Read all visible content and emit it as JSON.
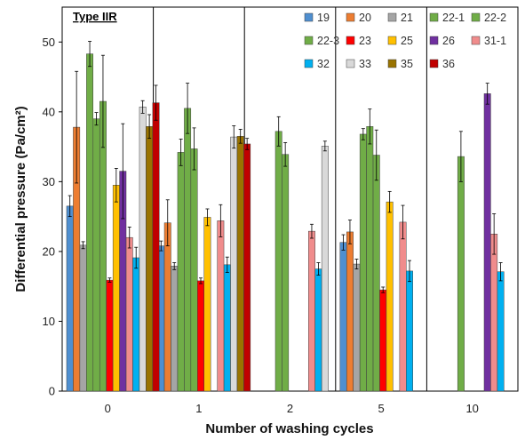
{
  "chart_data": {
    "type": "bar",
    "panel_label": "Type IIR",
    "xlabel": "Number of washing cycles",
    "ylabel": "Differential pressure (Pa/cm²)",
    "ylim": [
      0,
      55
    ],
    "yticks": [
      0,
      10,
      20,
      30,
      40,
      50
    ],
    "categories": [
      "0",
      "1",
      "2",
      "5",
      "10"
    ],
    "grid": false,
    "legend_position": "top-right",
    "series": [
      {
        "name": "19",
        "color": "#4f8fd0",
        "values": [
          26.5,
          20.8,
          null,
          21.3,
          null
        ],
        "errors": [
          1.5,
          0.7,
          null,
          1.1,
          null
        ]
      },
      {
        "name": "20",
        "color": "#ed7d31",
        "values": [
          37.8,
          24.1,
          null,
          22.8,
          null
        ],
        "errors": [
          8.0,
          3.3,
          null,
          1.7,
          null
        ]
      },
      {
        "name": "21",
        "color": "#a5a5a5",
        "values": [
          20.9,
          17.9,
          null,
          18.2,
          null
        ],
        "errors": [
          0.5,
          0.5,
          null,
          0.7,
          null
        ]
      },
      {
        "name": "22-1",
        "color": "#70ad47",
        "values": [
          48.3,
          34.2,
          null,
          36.8,
          null
        ],
        "errors": [
          1.8,
          1.9,
          null,
          0.8,
          null
        ]
      },
      {
        "name": "22-2",
        "color": "#70ad47",
        "values": [
          39.0,
          40.5,
          37.2,
          37.9,
          33.6
        ],
        "errors": [
          0.9,
          3.6,
          2.1,
          2.5,
          3.6
        ]
      },
      {
        "name": "22-3",
        "color": "#70ad47",
        "values": [
          41.5,
          34.7,
          33.9,
          33.8,
          null
        ],
        "errors": [
          6.6,
          3.0,
          1.7,
          3.6,
          null
        ]
      },
      {
        "name": "23",
        "color": "#ff0000",
        "values": [
          15.9,
          15.8,
          null,
          14.5,
          null
        ],
        "errors": [
          0.3,
          0.4,
          null,
          0.4,
          null
        ]
      },
      {
        "name": "25",
        "color": "#ffc000",
        "values": [
          29.5,
          24.9,
          null,
          27.1,
          null
        ],
        "errors": [
          2.4,
          1.2,
          null,
          1.5,
          null
        ]
      },
      {
        "name": "26",
        "color": "#7030a0",
        "values": [
          31.5,
          null,
          null,
          null,
          42.6
        ],
        "errors": [
          6.8,
          null,
          null,
          null,
          1.5
        ]
      },
      {
        "name": "31-1",
        "color": "#f08c8c",
        "values": [
          22.0,
          24.4,
          22.9,
          24.2,
          22.5
        ],
        "errors": [
          1.5,
          2.3,
          1.0,
          2.4,
          2.9
        ]
      },
      {
        "name": "32",
        "color": "#00b0f0",
        "values": [
          19.1,
          18.1,
          17.5,
          17.2,
          17.1
        ],
        "errors": [
          1.5,
          1.1,
          0.9,
          1.5,
          1.3
        ]
      },
      {
        "name": "33",
        "color": "#d9d9d9",
        "values": [
          40.7,
          36.4,
          35.1,
          null,
          null
        ],
        "errors": [
          0.9,
          1.6,
          0.7,
          null,
          null
        ]
      },
      {
        "name": "35",
        "color": "#997300",
        "values": [
          37.9,
          36.5,
          null,
          null,
          null
        ],
        "errors": [
          1.7,
          1.0,
          null,
          null,
          null
        ]
      },
      {
        "name": "36",
        "color": "#c00000",
        "values": [
          41.3,
          35.4,
          null,
          null,
          null
        ],
        "errors": [
          2.5,
          0.8,
          null,
          null,
          null
        ]
      }
    ]
  }
}
